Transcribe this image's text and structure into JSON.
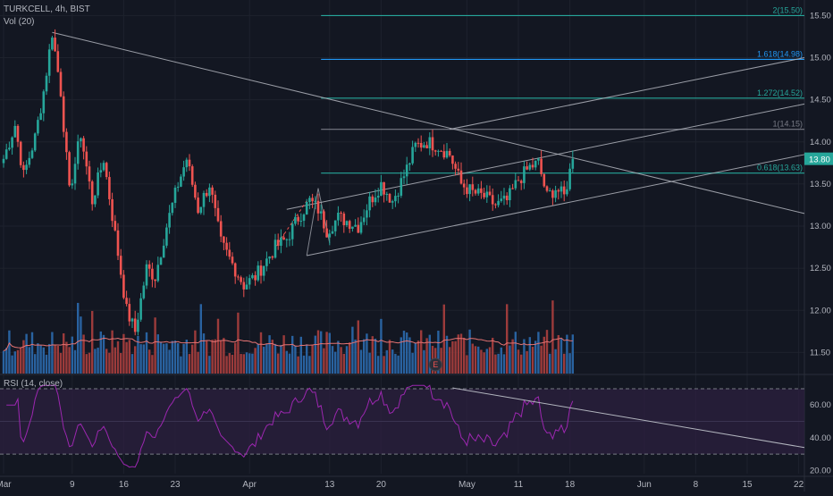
{
  "header": {
    "symbol_line": "TURKCELL, 4h, BIST",
    "volume_label": "Vol (20)",
    "rsi_label": "RSI (14, close)"
  },
  "chart_data": {
    "type": "candlestick",
    "symbol": "TURKCELL",
    "interval": "4h",
    "exchange": "BIST",
    "last_price": "13.80",
    "price_axis": {
      "min": 11.25,
      "max": 15.6,
      "ticks": [
        "15.50",
        "15.00",
        "14.50",
        "14.00",
        "13.50",
        "13.00",
        "12.50",
        "12.00",
        "11.50"
      ]
    },
    "rsi_axis": {
      "min": 18,
      "max": 76,
      "ticks": [
        "60.00",
        "40.00",
        "20.00"
      ],
      "bands": [
        70,
        30
      ]
    },
    "time_axis": {
      "labels": [
        {
          "label": "Mar",
          "bar": 0
        },
        {
          "label": "9",
          "bar": 24
        },
        {
          "label": "16",
          "bar": 42
        },
        {
          "label": "23",
          "bar": 60
        },
        {
          "label": "Apr",
          "bar": 86
        },
        {
          "label": "13",
          "bar": 114
        },
        {
          "label": "20",
          "bar": 132
        },
        {
          "label": "May",
          "bar": 162
        },
        {
          "label": "11",
          "bar": 180
        },
        {
          "label": "18",
          "bar": 198
        },
        {
          "label": "Jun",
          "bar": 224
        },
        {
          "label": "8",
          "bar": 242
        },
        {
          "label": "15",
          "bar": 260
        },
        {
          "label": "22",
          "bar": 278
        }
      ]
    },
    "fib_levels": [
      {
        "label": "2(15.50)",
        "price": 15.5
      },
      {
        "label": "1.618(14.98)",
        "price": 14.98
      },
      {
        "label": "1.272(14.52)",
        "price": 14.52
      },
      {
        "label": "1(14.15)",
        "price": 14.15
      },
      {
        "label": "0.618(13.63)",
        "price": 13.63
      }
    ],
    "earnings_marker": {
      "label": "E",
      "bar": 151
    },
    "anchors": [
      {
        "bar": 0,
        "price": 13.8
      },
      {
        "bar": 4,
        "price": 14.2
      },
      {
        "bar": 7,
        "price": 13.6
      },
      {
        "bar": 11,
        "price": 14.05
      },
      {
        "bar": 14,
        "price": 14.6
      },
      {
        "bar": 17,
        "price": 15.3
      },
      {
        "bar": 20,
        "price": 14.6
      },
      {
        "bar": 23,
        "price": 13.4
      },
      {
        "bar": 27,
        "price": 14.1
      },
      {
        "bar": 31,
        "price": 13.3
      },
      {
        "bar": 35,
        "price": 13.8
      },
      {
        "bar": 39,
        "price": 12.9
      },
      {
        "bar": 43,
        "price": 12.0
      },
      {
        "bar": 46,
        "price": 11.75
      },
      {
        "bar": 50,
        "price": 12.5
      },
      {
        "bar": 53,
        "price": 12.4
      },
      {
        "bar": 57,
        "price": 13.0
      },
      {
        "bar": 61,
        "price": 13.5
      },
      {
        "bar": 64,
        "price": 13.8
      },
      {
        "bar": 68,
        "price": 13.2
      },
      {
        "bar": 72,
        "price": 13.5
      },
      {
        "bar": 76,
        "price": 12.8
      },
      {
        "bar": 80,
        "price": 12.55
      },
      {
        "bar": 84,
        "price": 12.3
      },
      {
        "bar": 88,
        "price": 12.4
      },
      {
        "bar": 92,
        "price": 12.6
      },
      {
        "bar": 95,
        "price": 12.75
      },
      {
        "bar": 99,
        "price": 12.85
      },
      {
        "bar": 103,
        "price": 13.1
      },
      {
        "bar": 107,
        "price": 13.3
      },
      {
        "bar": 110,
        "price": 13.2
      },
      {
        "bar": 113,
        "price": 12.95
      },
      {
        "bar": 117,
        "price": 13.1
      },
      {
        "bar": 121,
        "price": 13.05
      },
      {
        "bar": 124,
        "price": 13.0
      },
      {
        "bar": 128,
        "price": 13.3
      },
      {
        "bar": 132,
        "price": 13.5
      },
      {
        "bar": 136,
        "price": 13.3
      },
      {
        "bar": 140,
        "price": 13.6
      },
      {
        "bar": 144,
        "price": 13.95
      },
      {
        "bar": 148,
        "price": 14.0
      },
      {
        "bar": 152,
        "price": 13.95
      },
      {
        "bar": 156,
        "price": 13.85
      },
      {
        "bar": 160,
        "price": 13.5
      },
      {
        "bar": 164,
        "price": 13.4
      },
      {
        "bar": 168,
        "price": 13.35
      },
      {
        "bar": 172,
        "price": 13.25
      },
      {
        "bar": 176,
        "price": 13.3
      },
      {
        "bar": 180,
        "price": 13.55
      },
      {
        "bar": 184,
        "price": 13.7
      },
      {
        "bar": 187,
        "price": 13.75
      },
      {
        "bar": 190,
        "price": 13.35
      },
      {
        "bar": 193,
        "price": 13.45
      },
      {
        "bar": 196,
        "price": 13.35
      },
      {
        "bar": 199,
        "price": 13.8
      }
    ]
  },
  "colors": {
    "background": "#131722",
    "up": "#26a69a",
    "down": "#ef5350",
    "up_volume": "#2962a0",
    "down_volume": "#9c3b3b",
    "trendline": "#b2b5be",
    "rsi_line": "#9c27b0",
    "rsi_band": "#2a1f3d",
    "volume_ma": "#e57373",
    "price_badge": "#26a69a"
  }
}
